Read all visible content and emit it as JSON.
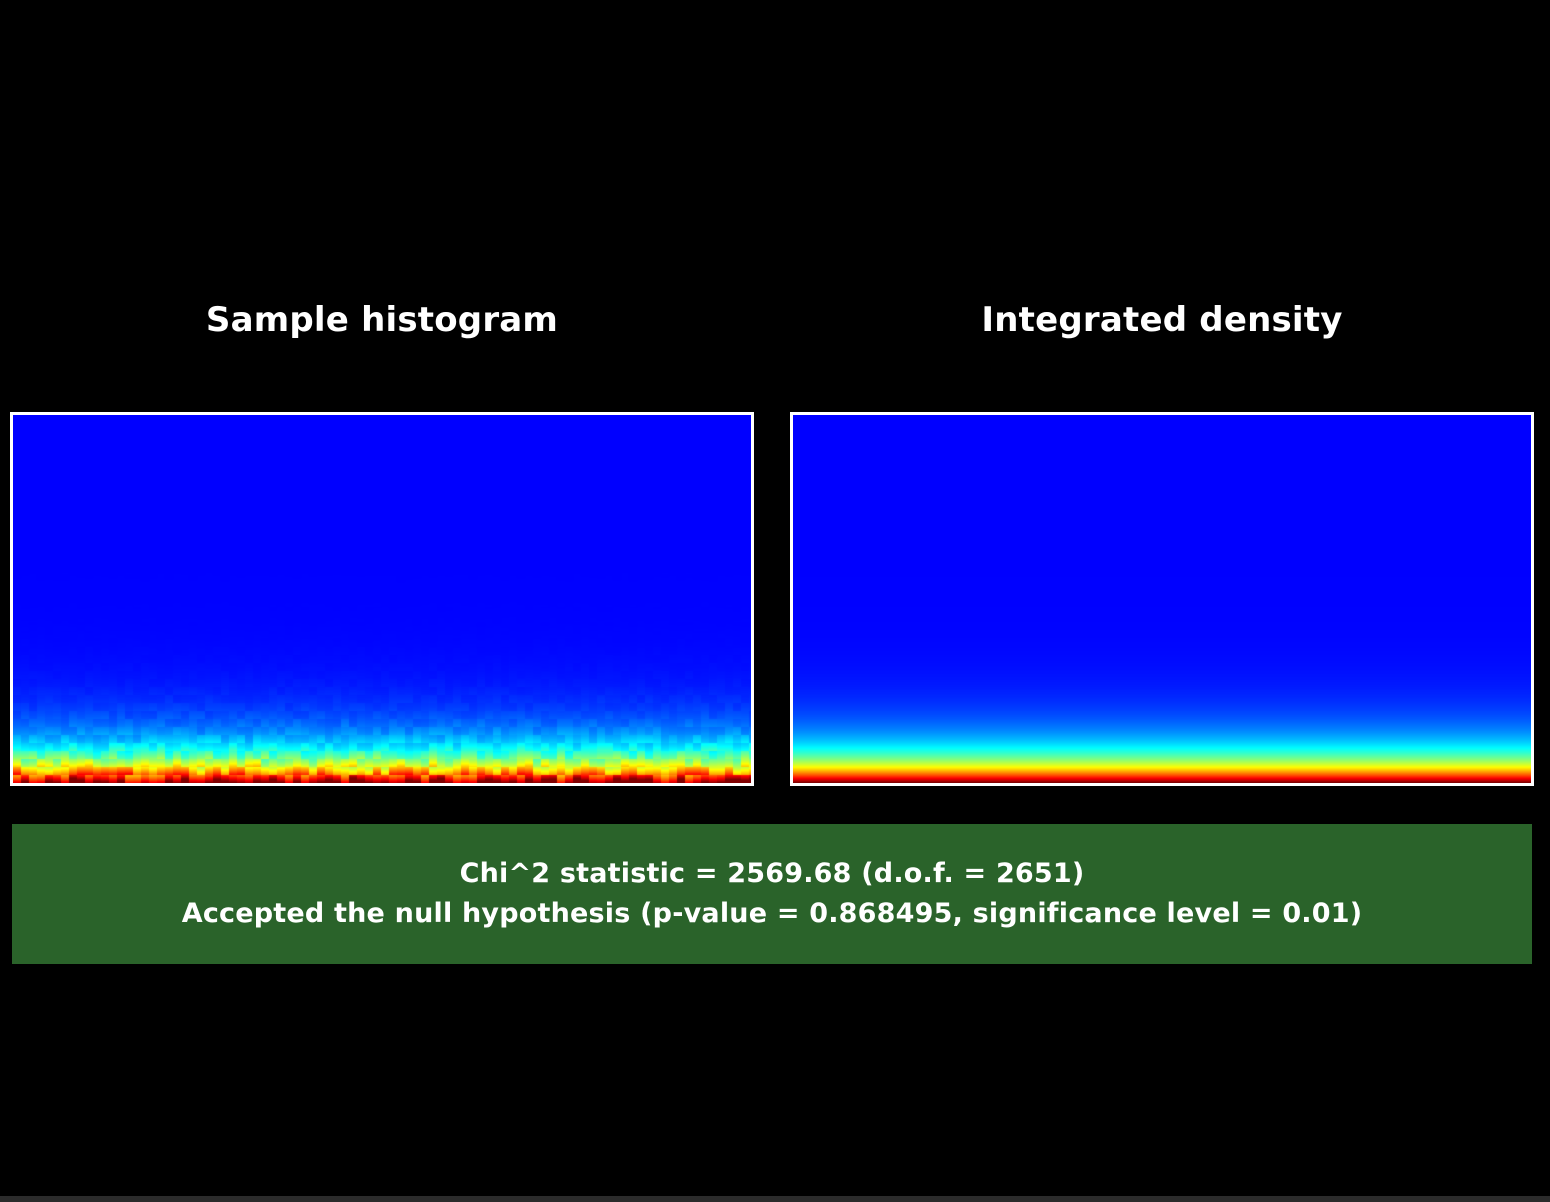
{
  "panels": {
    "left": {
      "title": "Sample histogram",
      "noise": true
    },
    "right": {
      "title": "Integrated density",
      "noise": false
    }
  },
  "result": {
    "line1": "Chi^2 statistic = 2569.68 (d.o.f. = 2651)",
    "line2": "Accepted the null hypothesis (p-value = 0.868495, significance level = 0.01)",
    "status": "accepted"
  },
  "colors": {
    "background": "#000000",
    "banner": "#2a632a",
    "frame": "#ffffff",
    "colormap_low": "#0000ff",
    "colormap_high": "#ff0000"
  }
}
